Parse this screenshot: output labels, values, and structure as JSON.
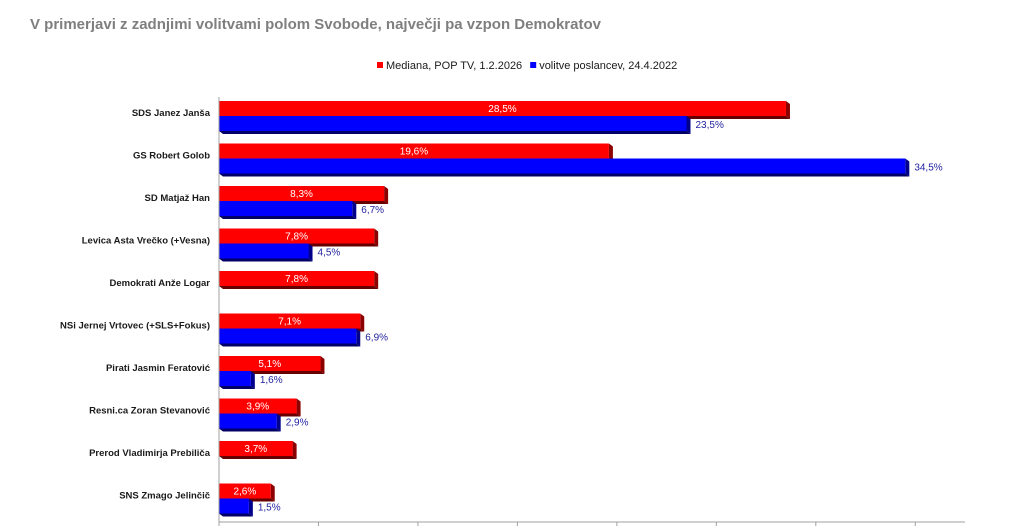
{
  "chart_data": {
    "type": "bar",
    "orientation": "horizontal",
    "title": "V primerjavi z zadnjimi volitvami polom Svobode, največji pa vzpon Demokratov",
    "categories": [
      "SDS Janez Janša",
      "GS Robert Golob",
      "SD Matjaž Han",
      "Levica Asta Vrečko (+Vesna)",
      "Demokrati Anže Logar",
      "NSi Jernej Vrtovec (+SLS+Fokus)",
      "Pirati Jasmin Feratović",
      "Resni.ca Zoran Stevanović",
      "Prerod Vladimirja Prebiliča",
      "SNS Zmago Jelinčič"
    ],
    "series": [
      {
        "name": "Mediana, POP TV, 1.2.2026",
        "color": "#ff0000",
        "values": [
          28.5,
          19.6,
          8.3,
          7.8,
          7.8,
          7.1,
          5.1,
          3.9,
          3.7,
          2.6
        ],
        "labels": [
          "28,5%",
          "19,6%",
          "8,3%",
          "7,8%",
          "7,8%",
          "7,1%",
          "5,1%",
          "3,9%",
          "3,7%",
          "2,6%"
        ]
      },
      {
        "name": "volitve poslancev, 24.4.2022",
        "color": "#0000ff",
        "values": [
          23.5,
          34.5,
          6.7,
          4.5,
          null,
          6.9,
          1.6,
          2.9,
          null,
          1.5
        ],
        "labels": [
          "23,5%",
          "34,5%",
          "6,7%",
          "4,5%",
          "",
          "6,9%",
          "1,6%",
          "2,9%",
          "",
          "1,5%"
        ]
      }
    ],
    "xlim": [
      0,
      37.5
    ],
    "legend_position": "top-center",
    "grid": false
  }
}
